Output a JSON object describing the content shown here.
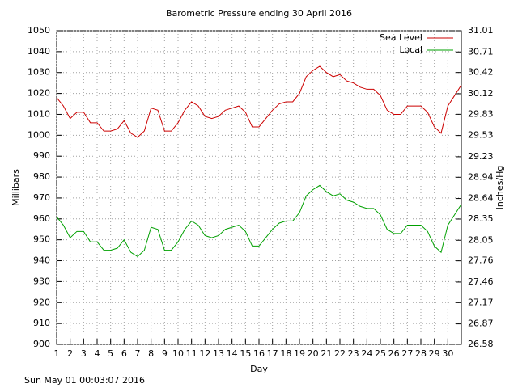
{
  "chart_data": {
    "type": "line",
    "title": "Barometric Pressure ending 30 April 2016",
    "x_label": "Day",
    "y_label": "Millibars",
    "y2_label": "Inches/Hg",
    "footer": "Sun May 01 00:03:07 2016",
    "xlim": [
      1,
      31
    ],
    "xticks": [
      1,
      2,
      3,
      4,
      5,
      6,
      7,
      8,
      9,
      10,
      11,
      12,
      13,
      14,
      15,
      16,
      17,
      18,
      19,
      20,
      21,
      22,
      23,
      24,
      25,
      26,
      27,
      28,
      29,
      30
    ],
    "ylim": [
      900,
      1050
    ],
    "yticks": [
      900,
      910,
      920,
      930,
      940,
      950,
      960,
      970,
      980,
      990,
      1000,
      1010,
      1020,
      1030,
      1040,
      1050
    ],
    "y2lim": [
      26.58,
      31.01
    ],
    "y2ticks": [
      26.58,
      26.87,
      27.17,
      27.46,
      27.76,
      28.05,
      28.35,
      28.64,
      28.94,
      29.23,
      29.53,
      29.83,
      30.12,
      30.42,
      30.71,
      31.01
    ],
    "grid": true,
    "legend": "top-right",
    "x": [
      1,
      1.5,
      2,
      2.5,
      3,
      3.5,
      4,
      4.5,
      5,
      5.5,
      6,
      6.5,
      7,
      7.5,
      8,
      8.5,
      9,
      9.5,
      10,
      10.5,
      11,
      11.5,
      12,
      12.5,
      13,
      13.5,
      14,
      14.5,
      15,
      15.5,
      16,
      16.5,
      17,
      17.5,
      18,
      18.5,
      19,
      19.5,
      20,
      20.5,
      21,
      21.5,
      22,
      22.5,
      23,
      23.5,
      24,
      24.5,
      25,
      25.5,
      26,
      26.5,
      27,
      27.5,
      28,
      28.5,
      29,
      29.5,
      30,
      30.5,
      31
    ],
    "series": [
      {
        "name": "Sea Level",
        "color": "#cc0000",
        "values": [
          1018,
          1014,
          1008,
          1011,
          1011,
          1006,
          1006,
          1002,
          1002,
          1003,
          1007,
          1001,
          999,
          1002,
          1013,
          1012,
          1002,
          1002,
          1006,
          1012,
          1016,
          1014,
          1009,
          1008,
          1009,
          1012,
          1013,
          1014,
          1011,
          1004,
          1004,
          1008,
          1012,
          1015,
          1016,
          1016,
          1020,
          1028,
          1031,
          1033,
          1030,
          1028,
          1029,
          1026,
          1025,
          1023,
          1022,
          1022,
          1019,
          1012,
          1010,
          1010,
          1014,
          1014,
          1014,
          1011,
          1004,
          1001,
          1014,
          1019,
          1024
        ]
      },
      {
        "name": "Local",
        "color": "#00a000",
        "values": [
          961,
          957,
          951,
          954,
          954,
          949,
          949,
          945,
          945,
          946,
          950,
          944,
          942,
          945,
          956,
          955,
          945,
          945,
          949,
          955,
          959,
          957,
          952,
          951,
          952,
          955,
          956,
          957,
          954,
          947,
          947,
          951,
          955,
          958,
          959,
          959,
          963,
          971,
          974,
          976,
          973,
          971,
          972,
          969,
          968,
          966,
          965,
          965,
          962,
          955,
          953,
          953,
          957,
          957,
          957,
          954,
          947,
          944,
          957,
          962,
          967
        ]
      }
    ]
  }
}
